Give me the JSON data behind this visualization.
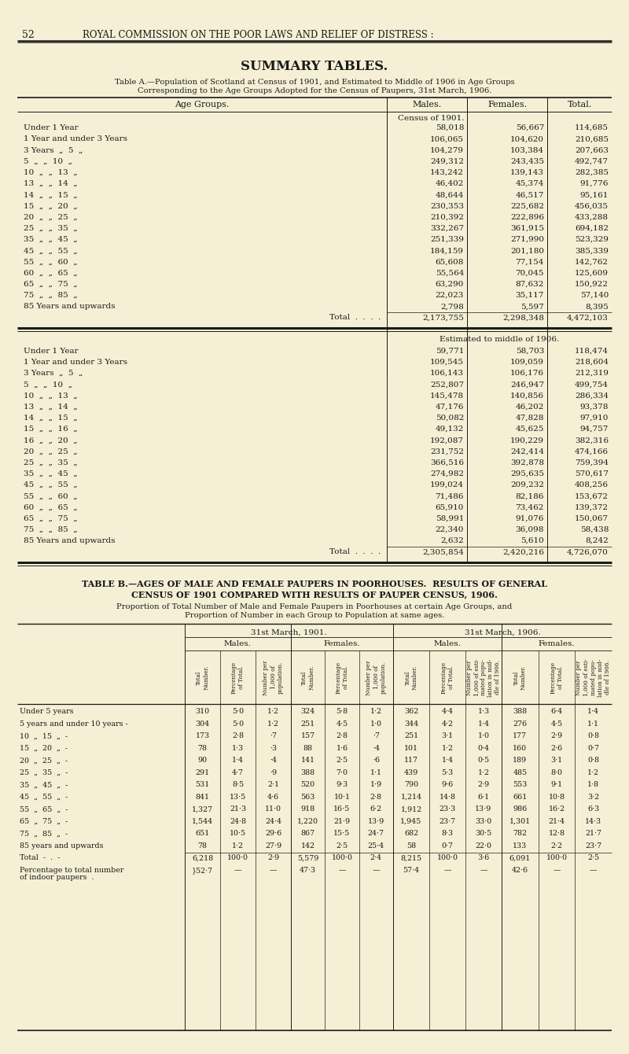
{
  "bg_color": "#f5f0d5",
  "text_color": "#1a1a1a",
  "page_num": "52",
  "header": "ROYAL COMMISSION ON THE POOR LAWS AND RELIEF OF DISTRESS :",
  "title": "SUMMARY TABLES.",
  "table_a_title_line1": "Table A.—Population of Scotland at Census of 1901, and Estimated to Middle of 1906 in Age Groups",
  "table_a_title_line2": "Corresponding to the Age Groups Adopted for the Census of Paupers, 31st March, 1906.",
  "census_label": "Census of 1901.",
  "estimated_label": "Estimated to middle of 1906.",
  "census_rows": [
    [
      "Under 1 Year",
      "58,018",
      "56,667",
      "114,685"
    ],
    [
      "1 Year and under 3 Years",
      "106,065",
      "104,620",
      "210,685"
    ],
    [
      "3 Years  „  5  „",
      "104,279",
      "103,384",
      "207,663"
    ],
    [
      "5  „  „  10  „",
      "249,312",
      "243,435",
      "492,747"
    ],
    [
      "10  „  „  13  „",
      "143,242",
      "139,143",
      "282,385"
    ],
    [
      "13  „  „  14  „",
      "46,402",
      "45,374",
      "91,776"
    ],
    [
      "14  „  „  15  „",
      "48,644",
      "46,517",
      "95,161"
    ],
    [
      "15  „  „  20  „",
      "230,353",
      "225,682",
      "456,035"
    ],
    [
      "20  „  „  25  „",
      "210,392",
      "222,896",
      "433,288"
    ],
    [
      "25  „  „  35  „",
      "332,267",
      "361,915",
      "694,182"
    ],
    [
      "35  „  „  45  „",
      "251,339",
      "271,990",
      "523,329"
    ],
    [
      "45  „  „  55  „",
      "184,159",
      "201,180",
      "385,339"
    ],
    [
      "55  „  „  60  „",
      "65,608",
      "77,154",
      "142,762"
    ],
    [
      "60  „  „  65  „",
      "55,564",
      "70,045",
      "125,609"
    ],
    [
      "65  „  „  75  „",
      "63,290",
      "87,632",
      "150,922"
    ],
    [
      "75  „  „  85  „",
      "22,023",
      "35,117",
      "57,140"
    ],
    [
      "85 Years and upwards",
      "2,798",
      "5,597",
      "8,395"
    ],
    [
      "Total",
      "2,173,755",
      "2,298,348",
      "4,472,103"
    ]
  ],
  "estimated_rows": [
    [
      "Under 1 Year",
      "59,771",
      "58,703",
      "118,474"
    ],
    [
      "1 Year and under 3 Years",
      "109,545",
      "109,059",
      "218,604"
    ],
    [
      "3 Years  „  5  „",
      "106,143",
      "106,176",
      "212,319"
    ],
    [
      "5  „  „  10  „",
      "252,807",
      "246,947",
      "499,754"
    ],
    [
      "10  „  „  13  „",
      "145,478",
      "140,856",
      "286,334"
    ],
    [
      "13  „  „  14  „",
      "47,176",
      "46,202",
      "93,378"
    ],
    [
      "14  „  „  15  „",
      "50,082",
      "47,828",
      "97,910"
    ],
    [
      "15  „  „  16  „",
      "49,132",
      "45,625",
      "94,757"
    ],
    [
      "16  „  „  20  „",
      "192,087",
      "190,229",
      "382,316"
    ],
    [
      "20  „  „  25  „",
      "231,752",
      "242,414",
      "474,166"
    ],
    [
      "25  „  „  35  „",
      "366,516",
      "392,878",
      "759,394"
    ],
    [
      "35  „  „  45  „",
      "274,982",
      "295,635",
      "570,617"
    ],
    [
      "45  „  „  55  „",
      "199,024",
      "209,232",
      "408,256"
    ],
    [
      "55  „  „  60  „",
      "71,486",
      "82,186",
      "153,672"
    ],
    [
      "60  „  „  65  „",
      "65,910",
      "73,462",
      "139,372"
    ],
    [
      "65  „  „  75  „",
      "58,991",
      "91,076",
      "150,067"
    ],
    [
      "75  „  „  85  „",
      "22,340",
      "36,098",
      "58,438"
    ],
    [
      "85 Years and upwards",
      "2,632",
      "5,610",
      "8,242"
    ],
    [
      "Total",
      "2,305,854",
      "2,420,216",
      "4,726,070"
    ]
  ],
  "table_b_title_line1": "TABLE B.—AGES OF MALE AND FEMALE PAUPERS IN POORHOUSES.  RESULTS OF GENERAL",
  "table_b_title_line2": "CENSUS OF 1901 COMPARED WITH RESULTS OF PAUPER CENSUS, 1906.",
  "table_b_sub_line1": "Proportion of Total Number of Male and Female Paupers in Poorhouses at certain Age Groups, and",
  "table_b_sub_line2": "Proportion of Number in each Group to Population at same ages.",
  "table_b_age_groups": [
    [
      "Under 5 years",
      ".",
      ".",
      ".",
      "."
    ],
    [
      "5 years and under 10 years",
      "-"
    ],
    [
      "10",
      "„„",
      "15",
      "„„",
      "-"
    ],
    [
      "15",
      "„„",
      "20",
      "„„",
      "-"
    ],
    [
      "20",
      "„„",
      "25",
      "„„",
      "-"
    ],
    [
      "25",
      "„„",
      "35",
      "„„",
      "-"
    ],
    [
      "35",
      "„„",
      "45",
      "„„",
      "-"
    ],
    [
      "45",
      "„„",
      "55",
      "„„",
      "-"
    ],
    [
      "55",
      "„„",
      "65",
      "„„",
      "-"
    ],
    [
      "65",
      "„„",
      "75",
      "„„",
      "-"
    ],
    [
      "75",
      "„„",
      "85",
      "„„",
      "-"
    ],
    [
      "85 years and upwards",
      "-"
    ],
    [
      "Total",
      "-",
      ".",
      "-"
    ],
    [
      "Percentage to total number",
      "of indoor paupers -",
      "."
    ]
  ],
  "table_b_age_labels": [
    "Under 5 years",
    "5 years and under 10 years -",
    "10  „  15  „  -",
    "15  „  20  „  -",
    "20  „  25  „  -",
    "25  „  35  „  -",
    "35  „  45  „  -",
    "45  „  55  „  -",
    "55  „  65  „  -",
    "65  „  75  „  -",
    "75  „  85  „  -",
    "85 years and upwards",
    "Total  -  .  -",
    "Percentage to total number\nof indoor paupers  ."
  ],
  "table_b_data": [
    [
      "310",
      "5·0",
      "1·2",
      "324",
      "5·8",
      "1·2",
      "362",
      "4·4",
      "1·3",
      "388",
      "6·4",
      "1·4"
    ],
    [
      "304",
      "5·0",
      "1·2",
      "251",
      "4·5",
      "1·0",
      "344",
      "4·2",
      "1·4",
      "276",
      "4·5",
      "1·1"
    ],
    [
      "173",
      "2·8",
      "·7",
      "157",
      "2·8",
      "·7",
      "251",
      "3·1",
      "1·0",
      "177",
      "2·9",
      "0·8"
    ],
    [
      "78",
      "1·3",
      "·3",
      "88",
      "1·6",
      "·4",
      "101",
      "1·2",
      "0·4",
      "160",
      "2·6",
      "0·7"
    ],
    [
      "90",
      "1·4",
      "·4",
      "141",
      "2·5",
      "·6",
      "117",
      "1·4",
      "0·5",
      "189",
      "3·1",
      "0·8"
    ],
    [
      "291",
      "4·7",
      "·9",
      "388",
      "7·0",
      "1·1",
      "439",
      "5·3",
      "1·2",
      "485",
      "8·0",
      "1·2"
    ],
    [
      "531",
      "8·5",
      "2·1",
      "520",
      "9·3",
      "1·9",
      "790",
      "9·6",
      "2·9",
      "553",
      "9·1",
      "1·8"
    ],
    [
      "841",
      "13·5",
      "4·6",
      "563",
      "10·1",
      "2·8",
      "1,214",
      "14·8",
      "6·1",
      "661",
      "10·8",
      "3·2"
    ],
    [
      "1,327",
      "21·3",
      "11·0",
      "918",
      "16·5",
      "6·2",
      "1,912",
      "23·3",
      "13·9",
      "986",
      "16·2",
      "6·3"
    ],
    [
      "1,544",
      "24·8",
      "24·4",
      "1,220",
      "21·9",
      "13·9",
      "1,945",
      "23·7",
      "33·0",
      "1,301",
      "21·4",
      "14·3"
    ],
    [
      "651",
      "10·5",
      "29·6",
      "867",
      "15·5",
      "24·7",
      "682",
      "8·3",
      "30·5",
      "782",
      "12·8",
      "21·7"
    ],
    [
      "78",
      "1·2",
      "27·9",
      "142",
      "2·5",
      "25·4",
      "58",
      "0·7",
      "22·0",
      "133",
      "2·2",
      "23·7"
    ],
    [
      "6,218",
      "100·0",
      "2·9",
      "5,579",
      "100·0",
      "2·4",
      "8,215",
      "100·0",
      "3·6",
      "6,091",
      "100·0",
      "2·5"
    ],
    [
      "}52·7",
      "—",
      "—",
      "47·3",
      "—",
      "—",
      "57·4",
      "—",
      "—",
      "42·6",
      "—",
      "—"
    ]
  ]
}
